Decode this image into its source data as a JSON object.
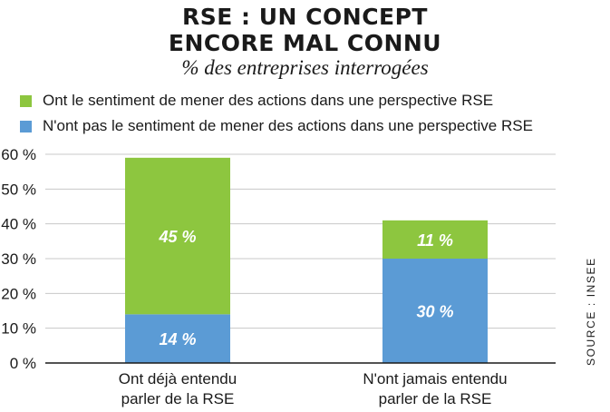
{
  "header": {
    "title_line1": "RSE : UN CONCEPT",
    "title_line2": "ENCORE MAL CONNU",
    "subtitle": "% des entreprises interrogées"
  },
  "source": "SOURCE : INSEE",
  "chart_data": {
    "type": "bar",
    "stacked": true,
    "categories": [
      "Ont déjà entendu parler de la RSE",
      "N'ont jamais entendu parler de la RSE"
    ],
    "category_lines": [
      [
        "Ont déjà entendu",
        "parler de la RSE"
      ],
      [
        "N'ont jamais entendu",
        "parler de la RSE"
      ]
    ],
    "series": [
      {
        "name": "N'ont pas le sentiment de mener des actions dans une perspective RSE",
        "values": [
          14,
          30
        ],
        "labels": [
          "14 %",
          "30 %"
        ],
        "color": "#5b9bd5"
      },
      {
        "name": "Ont le sentiment de mener des actions dans une perspective RSE",
        "values": [
          45,
          11
        ],
        "labels": [
          "45 %",
          "11 %"
        ],
        "color": "#8dc63f"
      }
    ],
    "legend_order": [
      1,
      0
    ],
    "yticks": [
      {
        "value": 0,
        "label": "0 %"
      },
      {
        "value": 10,
        "label": "10 %"
      },
      {
        "value": 20,
        "label": "20 %"
      },
      {
        "value": 30,
        "label": "30 %"
      },
      {
        "value": 40,
        "label": "40 %"
      },
      {
        "value": 50,
        "label": "50 %"
      },
      {
        "value": 60,
        "label": "60 %"
      }
    ],
    "ylim": [
      0,
      60
    ],
    "grid": true,
    "legend_position": "top-left"
  }
}
